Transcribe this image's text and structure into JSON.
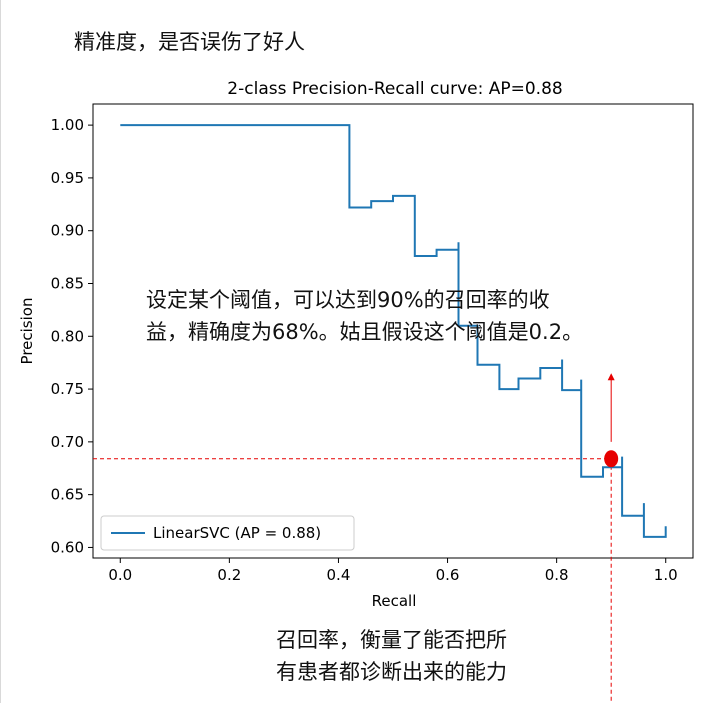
{
  "notes": {
    "top": "精准度，是否误伤了好人",
    "middle": [
      "设定某个阈值，可以达到90%的召回率的收",
      "益，精确度为68%。姑且假设这个阈值是0.2。"
    ],
    "bottom": [
      "召回率，衡量了能否把所",
      "有患者都诊断出来的能力"
    ]
  },
  "colors": {
    "series": "#1f77b4",
    "annotation": "#e60000",
    "axes": "#000000"
  },
  "chart_data": {
    "type": "line",
    "step": "post",
    "title": "2-class Precision-Recall curve: AP=0.88",
    "xlabel": "Recall",
    "ylabel": "Precision",
    "xlim": [
      -0.05,
      1.05
    ],
    "ylim": [
      0.59,
      1.02
    ],
    "xticks": [
      "0.0",
      "0.2",
      "0.4",
      "0.6",
      "0.8",
      "1.0"
    ],
    "xtick_values": [
      0.0,
      0.2,
      0.4,
      0.6,
      0.8,
      1.0
    ],
    "yticks": [
      "0.60",
      "0.65",
      "0.70",
      "0.75",
      "0.80",
      "0.85",
      "0.90",
      "0.95",
      "1.00"
    ],
    "ytick_values": [
      0.6,
      0.65,
      0.7,
      0.75,
      0.8,
      0.85,
      0.9,
      0.95,
      1.0
    ],
    "legend": {
      "label": "LinearSVC (AP = 0.88)",
      "placement": "lower-left"
    },
    "series": [
      {
        "name": "LinearSVC (AP = 0.88)",
        "x": [
          0.0,
          0.42,
          0.42,
          0.46,
          0.5,
          0.54,
          0.54,
          0.58,
          0.62,
          0.62,
          0.655,
          0.655,
          0.695,
          0.695,
          0.73,
          0.77,
          0.81,
          0.81,
          0.845,
          0.845,
          0.885,
          0.885,
          0.92,
          0.92,
          0.96,
          0.96,
          1.0
        ],
        "y": [
          1.0,
          1.0,
          0.922,
          0.928,
          0.933,
          0.933,
          0.876,
          0.882,
          0.889,
          0.81,
          0.81,
          0.773,
          0.773,
          0.75,
          0.76,
          0.77,
          0.778,
          0.749,
          0.759,
          0.667,
          0.676,
          0.676,
          0.686,
          0.63,
          0.642,
          0.61,
          0.62
        ]
      }
    ],
    "annotations": {
      "threshold_point": {
        "x": 0.9,
        "y": 0.684
      },
      "arrow": {
        "x": 0.9,
        "from_y": 0.7,
        "to_y": 0.765
      }
    }
  }
}
